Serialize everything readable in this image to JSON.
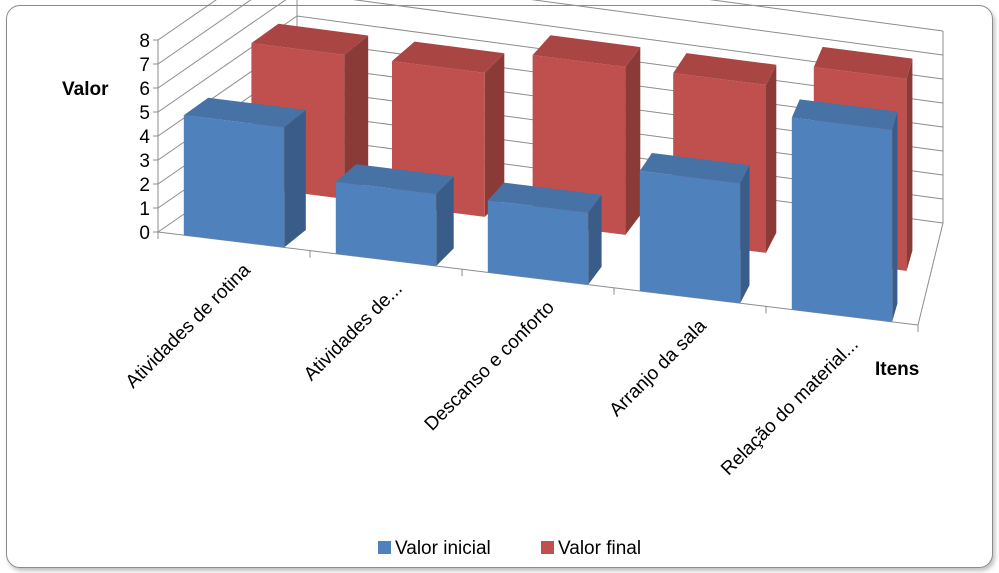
{
  "chart_data": {
    "type": "bar",
    "subtype": "3d-clustered-column",
    "title": "",
    "xlabel": "Itens",
    "ylabel": "Valor",
    "ylim": [
      0,
      8
    ],
    "yticks": [
      "0",
      "1",
      "2",
      "3",
      "4",
      "5",
      "6",
      "7",
      "8"
    ],
    "grid": true,
    "legend_position": "bottom",
    "categories": [
      "Atividades de rotina",
      "Atividades de...",
      "Descanso e conforto",
      "Arranjo da sala",
      "Relação do material..."
    ],
    "series": [
      {
        "name": "Valor inicial",
        "color": "#4f81bd",
        "values": [
          5,
          3,
          3,
          5,
          8
        ]
      },
      {
        "name": "Valor final",
        "color": "#c0504d",
        "values": [
          6,
          6,
          7,
          7,
          8
        ]
      }
    ]
  }
}
